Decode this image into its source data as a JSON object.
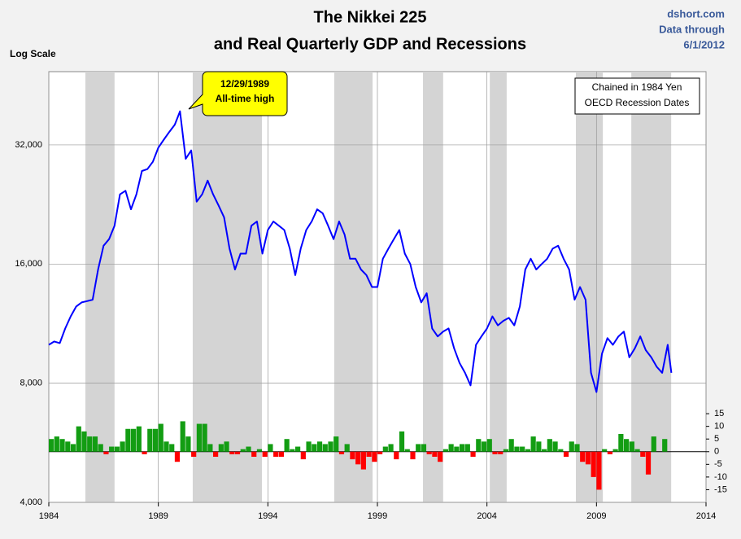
{
  "chart_data": {
    "type": "line",
    "title": [
      "The Nikkei 225",
      "and Real Quarterly GDP and Recessions"
    ],
    "source": [
      "dshort.com",
      "Data through",
      "6/1/2012"
    ],
    "y_label": "Log Scale",
    "notes": [
      "Chained in 1984 Yen",
      "OECD Recession Dates"
    ],
    "annotation": [
      "12/29/1989",
      "All-time high"
    ],
    "log_scale": true,
    "grid": true,
    "xlim": [
      1984,
      2014
    ],
    "xticks": [
      1984,
      1989,
      1994,
      1999,
      2004,
      2009,
      2014
    ],
    "ylim": [
      4000,
      49000
    ],
    "yticks": [
      {
        "value": 4000,
        "label": "4,000"
      },
      {
        "value": 8000,
        "label": "8,000"
      },
      {
        "value": 16000,
        "label": "16,000"
      },
      {
        "value": 32000,
        "label": "32,000"
      }
    ],
    "y2lim": [
      -20,
      150
    ],
    "y2ticks": [
      15,
      10,
      5,
      0,
      -5,
      -10,
      -15
    ],
    "recession_color": "#d4d4d4",
    "recessions": [
      [
        1985.67,
        1987.0
      ],
      [
        1990.57,
        1993.73
      ],
      [
        1997.03,
        1998.78
      ],
      [
        2001.08,
        2002.0
      ],
      [
        2004.13,
        2004.9
      ],
      [
        2008.06,
        2009.29
      ],
      [
        2010.59,
        2012.41
      ]
    ],
    "series": [
      {
        "type": "line",
        "color": "#0000ff",
        "x": [
          1984.0,
          1984.25,
          1984.5,
          1984.75,
          1985.0,
          1985.25,
          1985.5,
          1985.75,
          1986.0,
          1986.25,
          1986.5,
          1986.75,
          1987.0,
          1987.25,
          1987.5,
          1987.75,
          1988.0,
          1988.25,
          1988.5,
          1988.75,
          1989.0,
          1989.25,
          1989.5,
          1989.75,
          1989.99,
          1990.25,
          1990.5,
          1990.75,
          1991.0,
          1991.25,
          1991.5,
          1991.75,
          1992.0,
          1992.25,
          1992.5,
          1992.75,
          1993.0,
          1993.25,
          1993.5,
          1993.75,
          1994.0,
          1994.25,
          1994.5,
          1994.75,
          1995.0,
          1995.25,
          1995.5,
          1995.75,
          1996.0,
          1996.25,
          1996.5,
          1996.75,
          1997.0,
          1997.25,
          1997.5,
          1997.75,
          1998.0,
          1998.25,
          1998.5,
          1998.75,
          1999.0,
          1999.25,
          1999.5,
          1999.75,
          2000.0,
          2000.25,
          2000.5,
          2000.75,
          2001.0,
          2001.25,
          2001.5,
          2001.75,
          2002.0,
          2002.25,
          2002.5,
          2002.75,
          2003.0,
          2003.25,
          2003.5,
          2003.75,
          2004.0,
          2004.25,
          2004.5,
          2004.75,
          2005.0,
          2005.25,
          2005.5,
          2005.75,
          2006.0,
          2006.25,
          2006.5,
          2006.75,
          2007.0,
          2007.25,
          2007.5,
          2007.75,
          2008.0,
          2008.25,
          2008.5,
          2008.75,
          2009.0,
          2009.25,
          2009.5,
          2009.75,
          2010.0,
          2010.25,
          2010.5,
          2010.75,
          2011.0,
          2011.25,
          2011.5,
          2011.75,
          2012.0,
          2012.25,
          2012.42
        ],
        "values": [
          10000,
          10200,
          10100,
          11000,
          11800,
          12500,
          12800,
          12900,
          13000,
          15500,
          17800,
          18500,
          20000,
          24000,
          24500,
          22000,
          24000,
          27500,
          27800,
          29000,
          31500,
          33000,
          34500,
          36000,
          38900,
          29500,
          31000,
          23000,
          24000,
          26000,
          24000,
          22500,
          21000,
          17500,
          15500,
          17000,
          17000,
          20000,
          20500,
          17000,
          19500,
          20500,
          20000,
          19500,
          17500,
          15000,
          17500,
          19500,
          20500,
          22000,
          21500,
          20000,
          18500,
          20500,
          19000,
          16500,
          16500,
          15500,
          15000,
          14000,
          14000,
          16500,
          17500,
          18500,
          19500,
          17000,
          16000,
          14000,
          12800,
          13500,
          11000,
          10500,
          10800,
          11000,
          9800,
          9000,
          8500,
          7900,
          10000,
          10500,
          11000,
          11800,
          11200,
          11500,
          11700,
          11200,
          12500,
          15500,
          16500,
          15500,
          16000,
          16500,
          17500,
          17800,
          16500,
          15500,
          13000,
          14000,
          13000,
          8500,
          7600,
          9500,
          10400,
          10000,
          10500,
          10800,
          9300,
          9800,
          10500,
          9700,
          9300,
          8800,
          8500,
          10000,
          8500
        ]
      },
      {
        "type": "bar",
        "axis": "y2",
        "color": "#139d13",
        "negative_color": "#ff0000",
        "x": [
          1984.0,
          1984.25,
          1984.5,
          1984.75,
          1985.0,
          1985.25,
          1985.5,
          1985.75,
          1986.0,
          1986.25,
          1986.5,
          1986.75,
          1987.0,
          1987.25,
          1987.5,
          1987.75,
          1988.0,
          1988.25,
          1988.5,
          1988.75,
          1989.0,
          1989.25,
          1989.5,
          1989.75,
          1990.0,
          1990.25,
          1990.5,
          1990.75,
          1991.0,
          1991.25,
          1991.5,
          1991.75,
          1992.0,
          1992.25,
          1992.5,
          1992.75,
          1993.0,
          1993.25,
          1993.5,
          1993.75,
          1994.0,
          1994.25,
          1994.5,
          1994.75,
          1995.0,
          1995.25,
          1995.5,
          1995.75,
          1996.0,
          1996.25,
          1996.5,
          1996.75,
          1997.0,
          1997.25,
          1997.5,
          1997.75,
          1998.0,
          1998.25,
          1998.5,
          1998.75,
          1999.0,
          1999.25,
          1999.5,
          1999.75,
          2000.0,
          2000.25,
          2000.5,
          2000.75,
          2001.0,
          2001.25,
          2001.5,
          2001.75,
          2002.0,
          2002.25,
          2002.5,
          2002.75,
          2003.0,
          2003.25,
          2003.5,
          2003.75,
          2004.0,
          2004.25,
          2004.5,
          2004.75,
          2005.0,
          2005.25,
          2005.5,
          2005.75,
          2006.0,
          2006.25,
          2006.5,
          2006.75,
          2007.0,
          2007.25,
          2007.5,
          2007.75,
          2008.0,
          2008.25,
          2008.5,
          2008.75,
          2009.0,
          2009.25,
          2009.5,
          2009.75,
          2010.0,
          2010.25,
          2010.5,
          2010.75,
          2011.0,
          2011.25,
          2011.5,
          2011.75,
          2012.0
        ],
        "values": [
          5,
          6,
          5,
          4,
          3,
          10,
          8,
          6,
          6,
          3,
          -1,
          2,
          2,
          4,
          9,
          9,
          10,
          -1,
          9,
          9,
          11,
          4,
          3,
          -4,
          12,
          6,
          -2,
          11,
          11,
          3,
          -2,
          3,
          4,
          -1,
          -1,
          1,
          2,
          -2,
          1,
          -2,
          3,
          -2,
          -2,
          5,
          1,
          2,
          -3,
          4,
          3,
          4,
          3,
          4,
          6,
          -1,
          3,
          -3,
          -5,
          -7,
          -2,
          -4,
          -1,
          2,
          3,
          -3,
          8,
          1,
          -3,
          3,
          3,
          -1,
          -2,
          -4,
          1,
          3,
          2,
          3,
          3,
          -2,
          5,
          4,
          5,
          -1,
          -1,
          1,
          5,
          2,
          2,
          1,
          6,
          4,
          1,
          5,
          4,
          1,
          -2,
          4,
          3,
          -4,
          -5,
          -10,
          -15,
          1,
          -1,
          1,
          7,
          5,
          4,
          1,
          -2,
          -9,
          6,
          0,
          5
        ]
      }
    ]
  }
}
